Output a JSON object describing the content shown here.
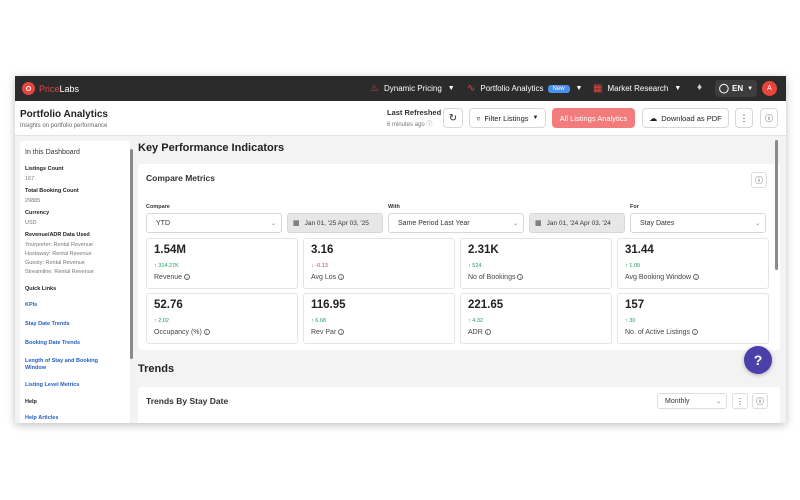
{
  "nav": {
    "brand_price": "Price",
    "brand_labs": "Labs",
    "dynamic_pricing": "Dynamic Pricing",
    "portfolio_analytics": "Portfolio Analytics",
    "new_badge": "New",
    "market_research": "Market Research",
    "lang": "EN",
    "avatar": "A"
  },
  "header": {
    "title": "Portfolio Analytics",
    "subtitle": "Insights on portfolio performance",
    "last_refreshed": "Last Refreshed",
    "refreshed_ago": "6 minutes ago",
    "filter_listings": "Filter Listings",
    "all_listings": "All Listings Analytics",
    "download_pdf": "Download as PDF"
  },
  "sidebar": {
    "heading": "In this Dashboard",
    "listings_count_label": "Listings Count",
    "listings_count": "167",
    "total_booking_label": "Total Booking Count",
    "total_booking": "29885",
    "currency_label": "Currency",
    "currency": "USD",
    "revenue_label": "Revenue/ADR Data Used",
    "revenue_sources": [
      "Yourporter: Rental Revenue",
      "Hostaway: Rental Revenue",
      "Guesty: Rental Revenue",
      "Streamline: Rental Revenue"
    ],
    "quick_links": "Quick Links",
    "links": [
      "KPIs",
      "Stay Date Trends",
      "Booking Date Trends",
      "Length of Stay and Booking Window",
      "Listing Level Metrics"
    ],
    "help": "Help",
    "help_articles": "Help Articles"
  },
  "kpi": {
    "heading": "Key Performance Indicators",
    "compare_metrics": "Compare Metrics",
    "compare_label": "Compare",
    "compare_value": "YTD",
    "compare_dates": "Jan 01, '25  Apr 03, '25",
    "with_label": "With",
    "with_value": "Same Period Last Year",
    "with_dates": "Jan 01, '24  Apr 03, '24",
    "for_label": "For",
    "for_value": "Stay Dates",
    "metrics": [
      {
        "value": "1.54M",
        "delta": "314.27K",
        "dir": "up",
        "name": "Revenue"
      },
      {
        "value": "3.16",
        "delta": "-0.13",
        "dir": "down",
        "name": "Avg Los"
      },
      {
        "value": "2.31K",
        "delta": "524",
        "dir": "up",
        "name": "No of Bookings"
      },
      {
        "value": "31.44",
        "delta": "1.09",
        "dir": "up",
        "name": "Avg Booking Window"
      },
      {
        "value": "52.76",
        "delta": "2.02",
        "dir": "up",
        "name": "Occupancy (%)"
      },
      {
        "value": "116.95",
        "delta": "6.68",
        "dir": "up",
        "name": "Rev Par"
      },
      {
        "value": "221.65",
        "delta": "4.32",
        "dir": "up",
        "name": "ADR"
      },
      {
        "value": "157",
        "delta": "30",
        "dir": "up",
        "name": "No. of Active Listings"
      }
    ]
  },
  "trends": {
    "heading": "Trends",
    "by_stay_date": "Trends By Stay Date",
    "granularity": "Monthly"
  },
  "help_fab": "?"
}
